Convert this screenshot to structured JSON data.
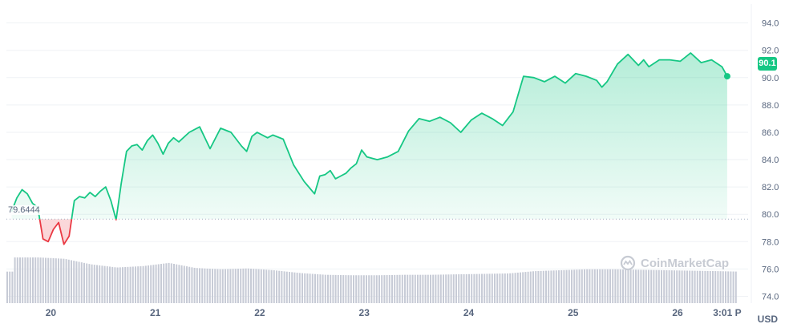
{
  "chart_data": {
    "type": "area",
    "y_ticks": [
      "94.0",
      "92.0",
      "90.0",
      "88.0",
      "86.0",
      "84.0",
      "82.0",
      "80.0",
      "78.0",
      "76.0",
      "74.0"
    ],
    "ylim": [
      73.5,
      94.8
    ],
    "x_ticks": [
      {
        "label": "20",
        "x": 0.375
      },
      {
        "label": "21",
        "x": 1.375
      },
      {
        "label": "22",
        "x": 2.375
      },
      {
        "label": "23",
        "x": 3.375
      },
      {
        "label": "24",
        "x": 4.375
      },
      {
        "label": "25",
        "x": 5.375
      },
      {
        "label": "26",
        "x": 6.375
      },
      {
        "label": "3:01 P",
        "x": 6.85
      }
    ],
    "xlim": [
      -0.05,
      7.05
    ],
    "baseline": 79.6444,
    "current_price": 90.1,
    "unit": "USD",
    "price": {
      "x": [
        0,
        0.05,
        0.1,
        0.15,
        0.2,
        0.25,
        0.3,
        0.35,
        0.4,
        0.45,
        0.5,
        0.55,
        0.6,
        0.65,
        0.7,
        0.75,
        0.8,
        0.85,
        0.9,
        0.95,
        1.0,
        1.05,
        1.1,
        1.15,
        1.2,
        1.25,
        1.3,
        1.35,
        1.4,
        1.45,
        1.5,
        1.55,
        1.6,
        1.7,
        1.8,
        1.9,
        2.0,
        2.1,
        2.2,
        2.25,
        2.3,
        2.35,
        2.4,
        2.45,
        2.5,
        2.6,
        2.7,
        2.8,
        2.9,
        2.95,
        3.0,
        3.05,
        3.1,
        3.15,
        3.2,
        3.25,
        3.3,
        3.35,
        3.4,
        3.5,
        3.6,
        3.7,
        3.8,
        3.9,
        4.0,
        4.1,
        4.2,
        4.3,
        4.4,
        4.5,
        4.6,
        4.7,
        4.8,
        4.9,
        5.0,
        5.1,
        5.2,
        5.3,
        5.4,
        5.5,
        5.6,
        5.65,
        5.7,
        5.8,
        5.9,
        6.0,
        6.05,
        6.1,
        6.2,
        6.3,
        6.4,
        6.5,
        6.6,
        6.7,
        6.8,
        6.85
      ],
      "values": [
        80.2,
        81.2,
        81.8,
        81.5,
        80.8,
        80.5,
        78.2,
        78.0,
        78.9,
        79.4,
        77.8,
        78.4,
        81.0,
        81.3,
        81.2,
        81.6,
        81.3,
        81.7,
        82.0,
        81.0,
        79.6,
        82.3,
        84.6,
        85.0,
        85.1,
        84.7,
        85.4,
        85.8,
        85.2,
        84.4,
        85.2,
        85.6,
        85.3,
        86.0,
        86.4,
        84.8,
        86.3,
        86.0,
        85.0,
        84.6,
        85.7,
        86.0,
        85.8,
        85.6,
        85.8,
        85.5,
        83.6,
        82.4,
        81.5,
        82.8,
        82.9,
        83.2,
        82.6,
        82.8,
        83.0,
        83.4,
        83.7,
        84.7,
        84.2,
        84.0,
        84.2,
        84.6,
        86.1,
        87.0,
        86.8,
        87.1,
        86.7,
        86.0,
        86.9,
        87.4,
        87.0,
        86.5,
        87.5,
        90.1,
        90.0,
        89.7,
        90.1,
        89.6,
        90.3,
        90.1,
        89.8,
        89.3,
        89.7,
        91.0,
        91.7,
        90.9,
        91.3,
        90.8,
        91.3,
        91.3,
        91.2,
        91.8,
        91.1,
        91.3,
        90.8,
        90.1
      ]
    },
    "volume": {
      "x": [
        0,
        0.25,
        0.5,
        0.75,
        1.0,
        1.25,
        1.5,
        1.75,
        2.0,
        2.25,
        2.5,
        2.75,
        3.0,
        3.25,
        3.5,
        3.75,
        4.0,
        4.25,
        4.5,
        4.75,
        5.0,
        5.25,
        5.5,
        5.75,
        6.0,
        6.25,
        6.5,
        6.75,
        6.95
      ],
      "values": [
        1.0,
        1.0,
        0.97,
        0.85,
        0.78,
        0.81,
        0.88,
        0.77,
        0.74,
        0.76,
        0.72,
        0.66,
        0.62,
        0.61,
        0.61,
        0.62,
        0.62,
        0.63,
        0.64,
        0.65,
        0.7,
        0.72,
        0.74,
        0.74,
        0.73,
        0.72,
        0.71,
        0.7,
        0.69
      ]
    }
  },
  "colors": {
    "up": "#16c784",
    "down": "#ea3943",
    "grid": "#eff2f5",
    "volume": "#c7cbd6",
    "axis_text": "#58667e"
  },
  "watermark": "CoinMarketCap"
}
